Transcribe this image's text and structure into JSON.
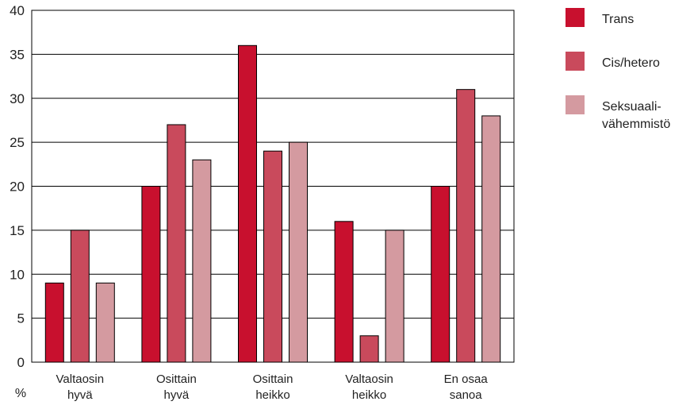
{
  "chart_data": {
    "type": "bar",
    "categories": [
      [
        "Valtaosin",
        "hyvä"
      ],
      [
        "Osittain",
        "hyvä"
      ],
      [
        "Osittain",
        "heikko"
      ],
      [
        "Valtaosin",
        "heikko"
      ],
      [
        "En osaa",
        "sanoa"
      ]
    ],
    "series": [
      {
        "name": "Trans",
        "values": [
          9,
          20,
          36,
          16,
          20
        ],
        "color": "#C8102E"
      },
      {
        "name": "Cis/hetero",
        "values": [
          15,
          27,
          24,
          3,
          31
        ],
        "color": "#C94A5C"
      },
      {
        "name": [
          "Seksuaali-",
          "vähemmistö"
        ],
        "values": [
          9,
          23,
          25,
          15,
          28
        ],
        "color": "#D49AA0"
      }
    ],
    "ylim": [
      0,
      40
    ],
    "yticks": [
      0,
      5,
      10,
      15,
      20,
      25,
      30,
      35,
      40
    ],
    "unit_label": "%",
    "grid": true,
    "legend_position": "right"
  }
}
